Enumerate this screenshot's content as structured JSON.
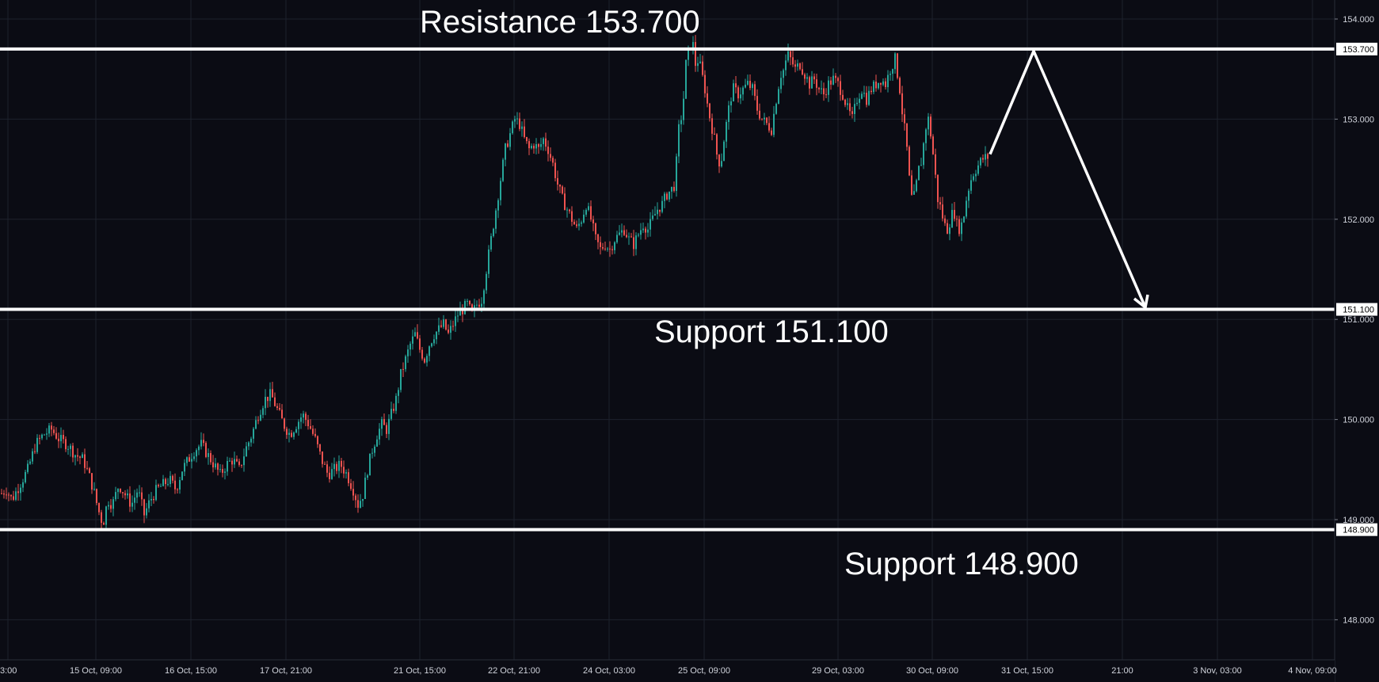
{
  "chart_data": {
    "type": "candlestick",
    "instrument_note": "",
    "y_ticks": [
      148.0,
      149.0,
      150.0,
      151.0,
      152.0,
      153.0,
      154.0
    ],
    "ylim": [
      147.75,
      154.2
    ],
    "x_tick_labels": [
      "3:00",
      "15 Oct, 09:00",
      "16 Oct, 15:00",
      "17 Oct, 21:00",
      "21 Oct, 15:00",
      "22 Oct, 21:00",
      "24 Oct, 03:00",
      "25 Oct, 09:00",
      "29 Oct, 03:00",
      "30 Oct, 09:00",
      "31 Oct, 15:00",
      "21:00",
      "3 Nov, 03:00",
      "4 Nov, 09:00"
    ],
    "levels": [
      {
        "value": 153.7,
        "label": "153.700",
        "annotation": "Resistance 153.700"
      },
      {
        "value": 151.1,
        "label": "151.100",
        "annotation": "Support 151.100"
      },
      {
        "value": 148.9,
        "label": "148.900",
        "annotation": "Support 148.900"
      }
    ],
    "close_path": [
      [
        0,
        149.25
      ],
      [
        8,
        149.3
      ],
      [
        15,
        149.2
      ],
      [
        25,
        149.35
      ],
      [
        35,
        149.5
      ],
      [
        45,
        149.75
      ],
      [
        55,
        149.85
      ],
      [
        65,
        149.9
      ],
      [
        75,
        149.8
      ],
      [
        85,
        149.75
      ],
      [
        95,
        149.65
      ],
      [
        105,
        149.6
      ],
      [
        112,
        149.45
      ],
      [
        118,
        149.3
      ],
      [
        124,
        149.1
      ],
      [
        130,
        148.95
      ],
      [
        136,
        149.2
      ],
      [
        142,
        149.15
      ],
      [
        150,
        149.35
      ],
      [
        158,
        149.25
      ],
      [
        166,
        149.15
      ],
      [
        174,
        149.3
      ],
      [
        182,
        149.05
      ],
      [
        190,
        149.2
      ],
      [
        198,
        149.3
      ],
      [
        206,
        149.35
      ],
      [
        214,
        149.4
      ],
      [
        222,
        149.3
      ],
      [
        230,
        149.5
      ],
      [
        238,
        149.6
      ],
      [
        246,
        149.7
      ],
      [
        254,
        149.75
      ],
      [
        262,
        149.65
      ],
      [
        270,
        149.55
      ],
      [
        278,
        149.45
      ],
      [
        286,
        149.55
      ],
      [
        294,
        149.6
      ],
      [
        302,
        149.5
      ],
      [
        310,
        149.7
      ],
      [
        318,
        149.85
      ],
      [
        326,
        150.05
      ],
      [
        334,
        150.2
      ],
      [
        342,
        150.25
      ],
      [
        350,
        150.1
      ],
      [
        358,
        149.95
      ],
      [
        366,
        149.85
      ],
      [
        374,
        149.95
      ],
      [
        382,
        150.05
      ],
      [
        390,
        149.95
      ],
      [
        398,
        149.8
      ],
      [
        406,
        149.6
      ],
      [
        414,
        149.45
      ],
      [
        422,
        149.5
      ],
      [
        430,
        149.55
      ],
      [
        438,
        149.45
      ],
      [
        446,
        149.3
      ],
      [
        452,
        149.15
      ],
      [
        458,
        149.25
      ],
      [
        464,
        149.5
      ],
      [
        470,
        149.7
      ],
      [
        476,
        149.85
      ],
      [
        482,
        149.95
      ],
      [
        488,
        149.9
      ],
      [
        494,
        150.05
      ],
      [
        500,
        150.2
      ],
      [
        506,
        150.45
      ],
      [
        512,
        150.6
      ],
      [
        518,
        150.75
      ],
      [
        524,
        150.85
      ],
      [
        530,
        150.7
      ],
      [
        536,
        150.6
      ],
      [
        542,
        150.75
      ],
      [
        548,
        150.85
      ],
      [
        554,
        150.9
      ],
      [
        560,
        150.95
      ],
      [
        566,
        150.85
      ],
      [
        572,
        150.95
      ],
      [
        578,
        151.05
      ],
      [
        584,
        151.1
      ],
      [
        590,
        151.15
      ],
      [
        596,
        151.05
      ],
      [
        602,
        151.15
      ],
      [
        608,
        151.2
      ],
      [
        614,
        151.5
      ],
      [
        620,
        151.8
      ],
      [
        626,
        152.1
      ],
      [
        632,
        152.4
      ],
      [
        638,
        152.7
      ],
      [
        644,
        152.85
      ],
      [
        650,
        153.0
      ],
      [
        656,
        152.95
      ],
      [
        662,
        152.8
      ],
      [
        668,
        152.7
      ],
      [
        674,
        152.75
      ],
      [
        680,
        152.7
      ],
      [
        686,
        152.8
      ],
      [
        692,
        152.7
      ],
      [
        698,
        152.55
      ],
      [
        704,
        152.35
      ],
      [
        710,
        152.2
      ],
      [
        716,
        152.1
      ],
      [
        722,
        152.0
      ],
      [
        728,
        151.9
      ],
      [
        734,
        152.0
      ],
      [
        740,
        152.15
      ],
      [
        746,
        152.0
      ],
      [
        752,
        151.8
      ],
      [
        758,
        151.7
      ],
      [
        764,
        151.75
      ],
      [
        770,
        151.7
      ],
      [
        776,
        151.8
      ],
      [
        782,
        151.85
      ],
      [
        788,
        151.9
      ],
      [
        794,
        151.8
      ],
      [
        800,
        151.75
      ],
      [
        806,
        151.85
      ],
      [
        812,
        151.95
      ],
      [
        818,
        151.9
      ],
      [
        824,
        152.0
      ],
      [
        830,
        152.1
      ],
      [
        836,
        152.15
      ],
      [
        842,
        152.25
      ],
      [
        848,
        152.3
      ],
      [
        852,
        152.35
      ],
      [
        857,
        152.9
      ],
      [
        862,
        153.1
      ],
      [
        866,
        153.55
      ],
      [
        870,
        153.7
      ],
      [
        874,
        153.8
      ],
      [
        878,
        153.55
      ],
      [
        882,
        153.6
      ],
      [
        886,
        153.45
      ],
      [
        890,
        153.3
      ],
      [
        894,
        153.1
      ],
      [
        898,
        152.95
      ],
      [
        902,
        152.8
      ],
      [
        906,
        152.6
      ],
      [
        910,
        152.55
      ],
      [
        914,
        152.8
      ],
      [
        918,
        153.0
      ],
      [
        922,
        153.2
      ],
      [
        926,
        153.3
      ],
      [
        932,
        153.25
      ],
      [
        938,
        153.3
      ],
      [
        944,
        153.35
      ],
      [
        950,
        153.3
      ],
      [
        956,
        153.1
      ],
      [
        962,
        153.0
      ],
      [
        968,
        152.95
      ],
      [
        974,
        152.9
      ],
      [
        978,
        153.1
      ],
      [
        982,
        153.3
      ],
      [
        986,
        153.45
      ],
      [
        990,
        153.5
      ],
      [
        994,
        153.65
      ],
      [
        998,
        153.6
      ],
      [
        1004,
        153.5
      ],
      [
        1010,
        153.55
      ],
      [
        1016,
        153.45
      ],
      [
        1022,
        153.35
      ],
      [
        1028,
        153.4
      ],
      [
        1034,
        153.3
      ],
      [
        1040,
        153.25
      ],
      [
        1046,
        153.35
      ],
      [
        1052,
        153.4
      ],
      [
        1058,
        153.35
      ],
      [
        1064,
        153.25
      ],
      [
        1070,
        153.1
      ],
      [
        1076,
        153.0
      ],
      [
        1082,
        153.2
      ],
      [
        1088,
        153.3
      ],
      [
        1094,
        153.2
      ],
      [
        1100,
        153.3
      ],
      [
        1106,
        153.35
      ],
      [
        1112,
        153.4
      ],
      [
        1118,
        153.35
      ],
      [
        1124,
        153.5
      ],
      [
        1130,
        153.6
      ],
      [
        1136,
        153.3
      ],
      [
        1140,
        153.0
      ],
      [
        1144,
        152.8
      ],
      [
        1148,
        152.4
      ],
      [
        1152,
        152.15
      ],
      [
        1156,
        152.3
      ],
      [
        1160,
        152.5
      ],
      [
        1164,
        152.6
      ],
      [
        1168,
        152.9
      ],
      [
        1172,
        153.0
      ],
      [
        1176,
        152.8
      ],
      [
        1180,
        152.5
      ],
      [
        1184,
        152.2
      ],
      [
        1188,
        152.1
      ],
      [
        1192,
        151.95
      ],
      [
        1196,
        151.9
      ],
      [
        1200,
        152.0
      ],
      [
        1204,
        152.1
      ],
      [
        1208,
        151.95
      ],
      [
        1212,
        151.9
      ],
      [
        1216,
        152.0
      ],
      [
        1220,
        152.2
      ],
      [
        1224,
        152.35
      ],
      [
        1228,
        152.45
      ],
      [
        1232,
        152.5
      ],
      [
        1236,
        152.55
      ],
      [
        1240,
        152.6
      ],
      [
        1246,
        152.62
      ]
    ],
    "projection": [
      [
        1250,
        152.65
      ],
      [
        1305,
        153.68
      ],
      [
        1446,
        151.12
      ]
    ]
  }
}
